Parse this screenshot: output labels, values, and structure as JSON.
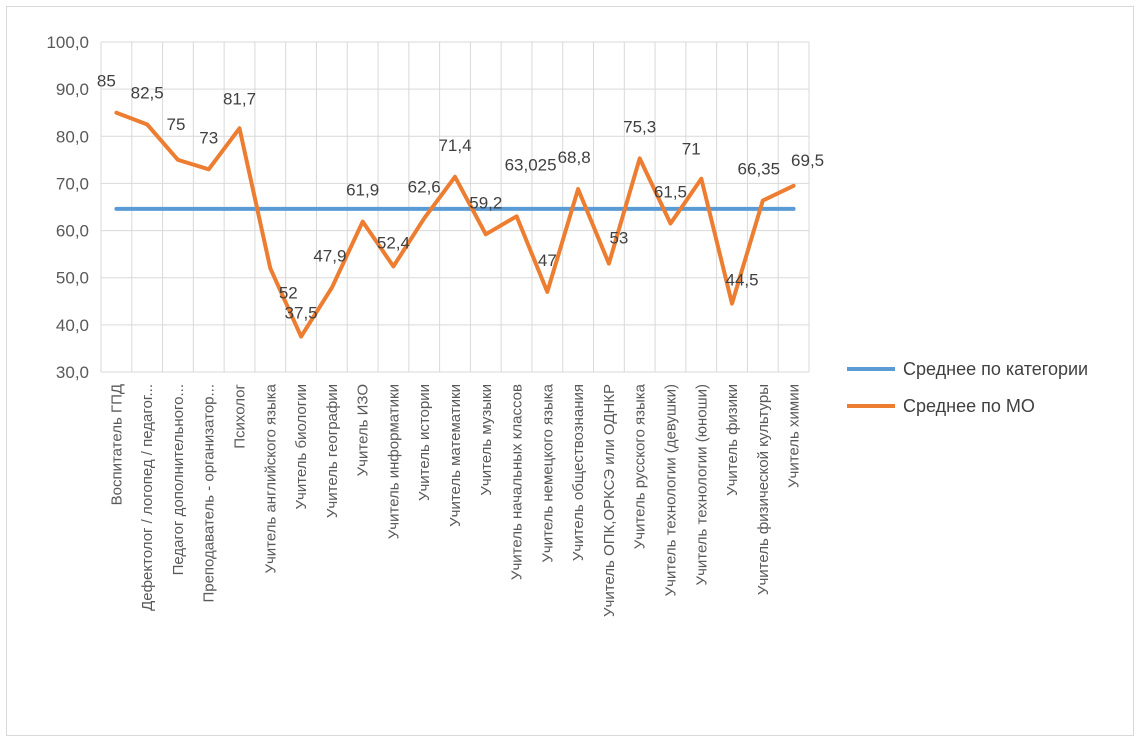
{
  "chart_data": {
    "type": "line",
    "categories": [
      "Воспитатель ГПД",
      "Дефектолог / логопед / педагог...",
      "Педагог дополнительного...",
      "Преподаватель - организатор...",
      "Психолог",
      "Учитель английского языка",
      "Учитель биологии",
      "Учитель географии",
      "Учитель ИЗО",
      "Учитель информатики",
      "Учитель истории",
      "Учитель математики",
      "Учитель музыки",
      "Учитель начальных классов",
      "Учитель немецкого языка",
      "Учитель обществознания",
      "Учитель ОПК,ОРКСЭ или ОДНКР",
      "Учитель русского языка",
      "Учитель технологии (девушки)",
      "Учитель технологии (юноши)",
      "Учитель физики",
      "Учитель физической культуры",
      "Учитель химии"
    ],
    "series": [
      {
        "name": "Среднее по категории",
        "color": "#5b9bd5",
        "values": [
          64.6,
          64.6,
          64.6,
          64.6,
          64.6,
          64.6,
          64.6,
          64.6,
          64.6,
          64.6,
          64.6,
          64.6,
          64.6,
          64.6,
          64.6,
          64.6,
          64.6,
          64.6,
          64.6,
          64.6,
          64.6,
          64.6,
          64.6
        ]
      },
      {
        "name": "Среднее по МО",
        "color": "#ed7d31",
        "values": [
          85,
          82.5,
          75,
          73,
          81.7,
          52,
          37.5,
          47.9,
          61.9,
          52.4,
          62.6,
          71.4,
          59.2,
          63.025,
          47,
          68.8,
          53,
          75.3,
          61.5,
          71,
          44.5,
          66.35,
          69.5
        ],
        "labels": [
          "85",
          "82,5",
          "75",
          "73",
          "81,7",
          "52",
          "37,5",
          "47,9",
          "61,9",
          "52,4",
          "62,6",
          "71,4",
          "59,2",
          "63,025",
          "47",
          "68,8",
          "53",
          "75,3",
          "61,5",
          "71",
          "44,5",
          "66,35",
          "69,5"
        ]
      }
    ],
    "y_ticks": [
      "30,0",
      "40,0",
      "50,0",
      "60,0",
      "70,0",
      "80,0",
      "90,0",
      "100,0"
    ],
    "ylim": [
      30,
      100
    ],
    "grid": true,
    "legend_position": "right"
  }
}
